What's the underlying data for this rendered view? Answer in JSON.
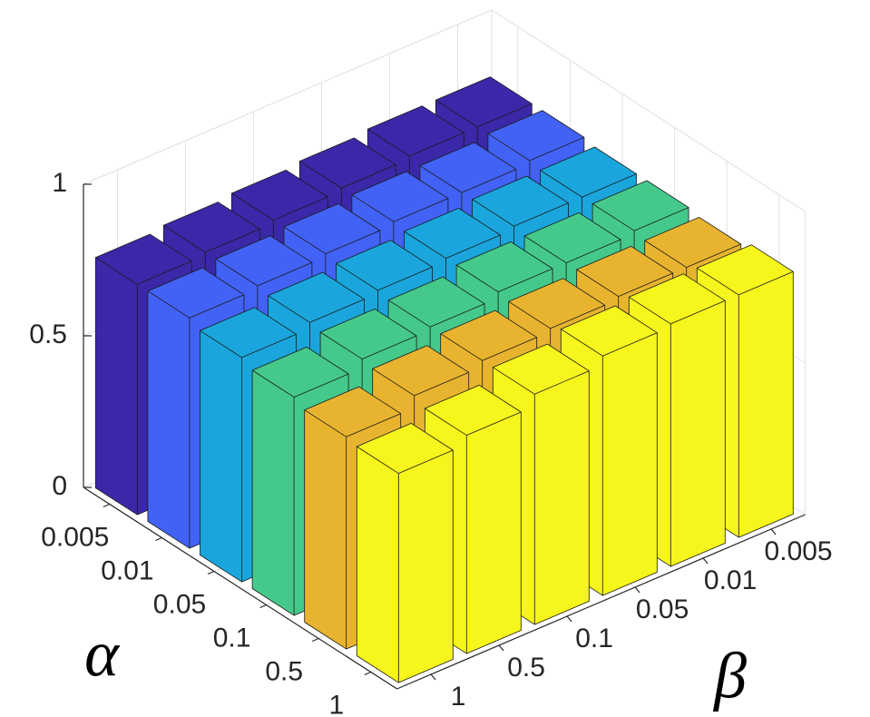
{
  "chart_data": {
    "type": "bar3",
    "xlabel": "α",
    "ylabel": "β",
    "alpha": [
      "0.005",
      "0.01",
      "0.05",
      "0.1",
      "0.5",
      "1"
    ],
    "beta": [
      "1",
      "0.5",
      "0.1",
      "0.05",
      "0.01",
      "0.005"
    ],
    "colors": [
      "#3b28a8",
      "#4262f5",
      "#1aa6dc",
      "#44c98b",
      "#e8b430",
      "#f6f51c"
    ],
    "values": [
      [
        0.76,
        0.77,
        0.78,
        0.79,
        0.8,
        0.8
      ],
      [
        0.76,
        0.77,
        0.78,
        0.79,
        0.79,
        0.8
      ],
      [
        0.74,
        0.76,
        0.77,
        0.78,
        0.79,
        0.79
      ],
      [
        0.72,
        0.75,
        0.76,
        0.78,
        0.78,
        0.79
      ],
      [
        0.7,
        0.74,
        0.76,
        0.77,
        0.78,
        0.78
      ],
      [
        0.69,
        0.72,
        0.76,
        0.79,
        0.8,
        0.8
      ]
    ],
    "zlim": [
      0,
      1
    ],
    "zticks": [
      0,
      0.5,
      1
    ],
    "grid": true
  }
}
